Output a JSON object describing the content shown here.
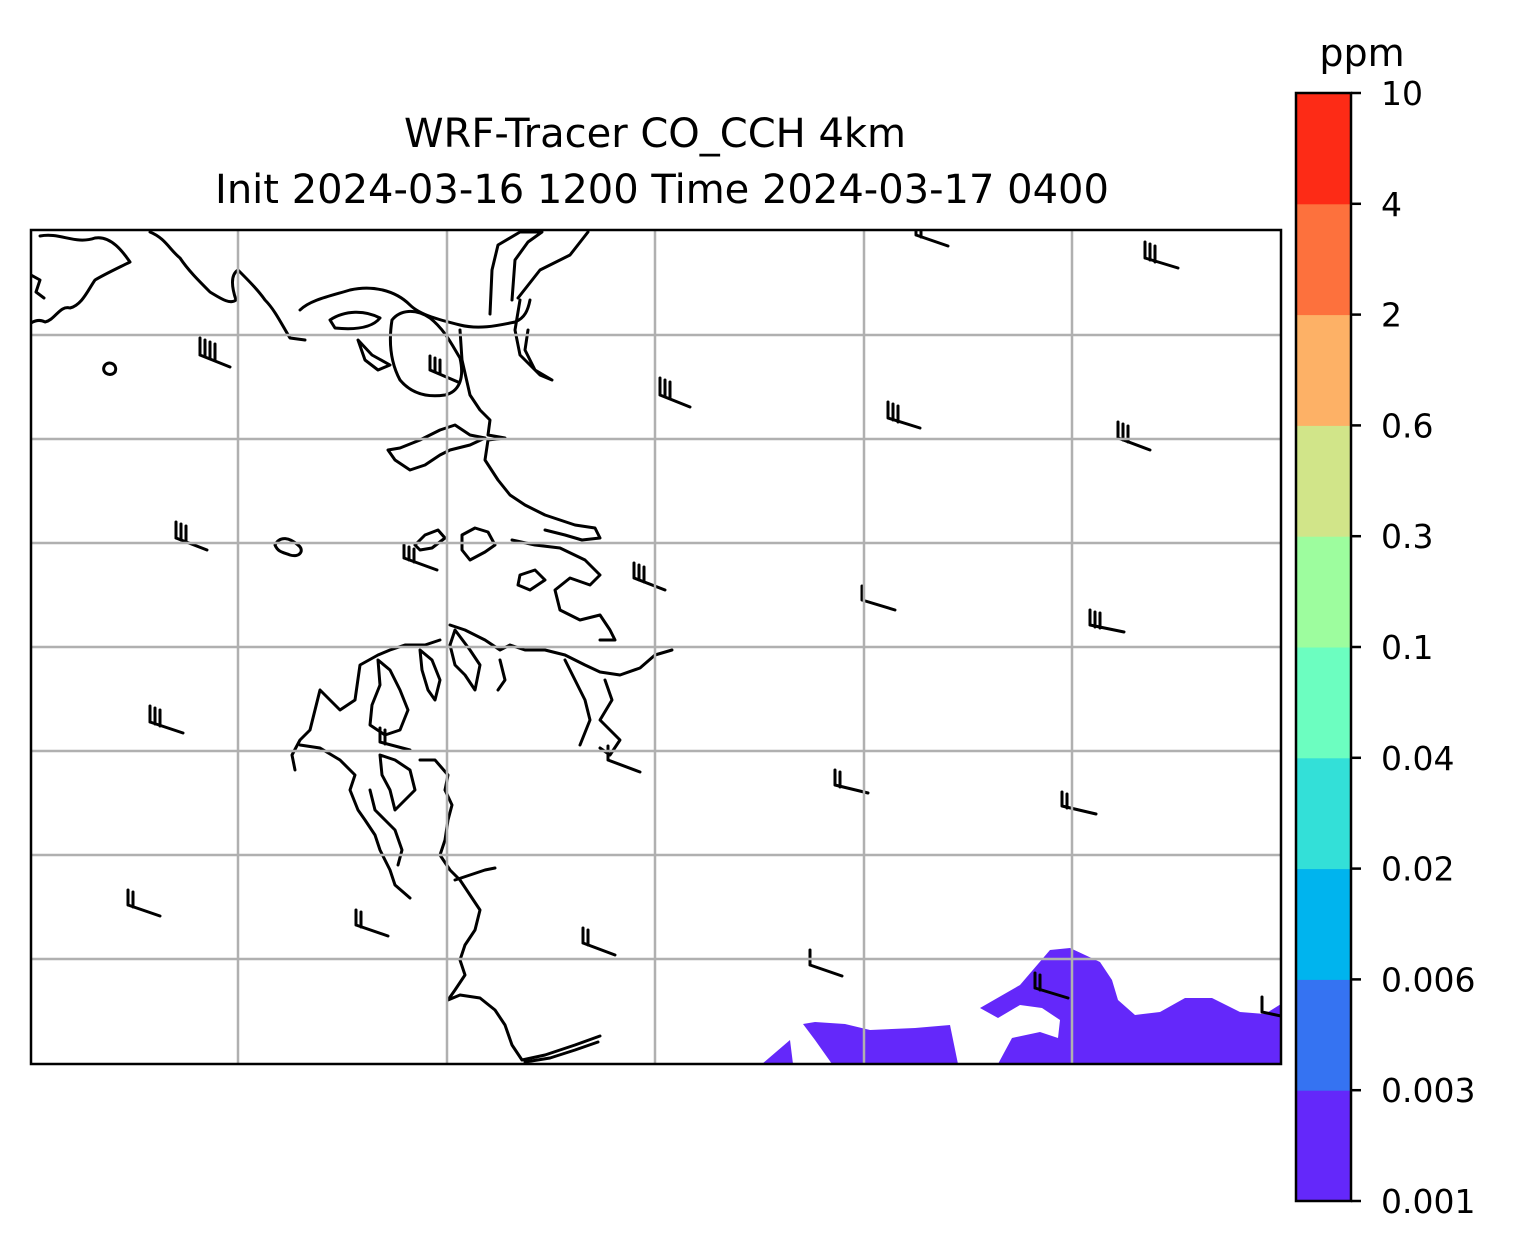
{
  "title": {
    "line1": "WRF-Tracer CO_CCH 4km",
    "line2": "Init 2024-03-16 1200 Time 2024-03-17 0400"
  },
  "colorbar": {
    "unit": "ppm",
    "ticks": [
      "0.001",
      "0.003",
      "0.006",
      "0.02",
      "0.04",
      "0.1",
      "0.3",
      "0.6",
      "2",
      "4",
      "10"
    ],
    "colors": [
      "#6428fa",
      "#3573f2",
      "#00b4ee",
      "#33e0d8",
      "#6cfec0",
      "#9dfd9e",
      "#d1e589",
      "#fdb166",
      "#fd713d",
      "#fd2b16"
    ]
  },
  "map": {
    "grid": true,
    "tracer_color": "#6428fa"
  }
}
